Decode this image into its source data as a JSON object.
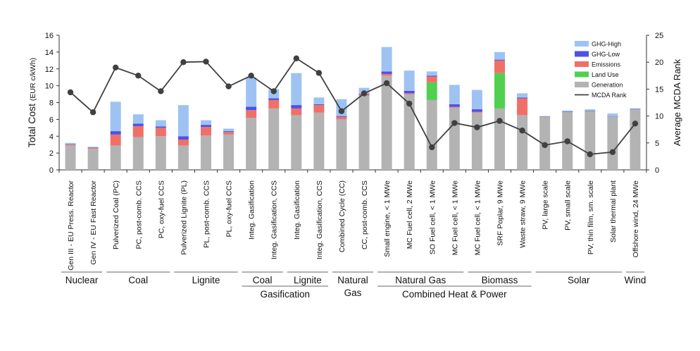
{
  "chart_data": {
    "type": "bar",
    "stacked": true,
    "secondary_line": true,
    "ylabel_left": "Total Cost (EUR c/kWh)",
    "ylabel_left_main": "Total Cost",
    "ylabel_left_sub": "(EUR c/kWh)",
    "ylabel_right": "Average MCDA Rank",
    "ylim_left": [
      0,
      16
    ],
    "ylim_right": [
      0,
      25
    ],
    "yticks_left": [
      "0",
      "2",
      "4",
      "6",
      "8",
      "10",
      "12",
      "14",
      "16"
    ],
    "yticks_right": [
      "0",
      "5",
      "10",
      "15",
      "20",
      "25"
    ],
    "categories": [
      "Gen III - EU Press. Reactor",
      "Gen IV - EU Fast Reactor",
      "Pulverized Coal (PC)",
      "PC, post-comb. CCS",
      "PC, oxy-fuel CCS",
      "Pulverized Lignite (PL)",
      "PL, post-comb. CCS",
      "PL, oxy-fuel CCS",
      "Integ. Gasification",
      "Integ. Gasification, CCS",
      "Integ. Gasification",
      "Integ. Gasification, CCS",
      "Combined Cycle (CC)",
      "CC, post-comb. CCS",
      "Small engine, < 1 MWe",
      "MC Fuel  cell, 2 MWe",
      "SO Fuel cell, < 1 MWe",
      "MC Fuel  cell, < 1 MWe",
      "MC Fuel  cell, < 1 MWe",
      "SRF Poplar, 9 MWe",
      "Waste straw, 9 MWe",
      "PV, large scale",
      "PV, small scale",
      "PV, thin film, sm. scale",
      "Solar thermal plant",
      "Offshore wind, 24 MWe"
    ],
    "series": [
      {
        "name": "Generation",
        "color": "#b3b3b3",
        "values": [
          2.9,
          2.5,
          2.9,
          3.9,
          4.0,
          2.9,
          4.1,
          4.2,
          6.2,
          7.3,
          6.5,
          6.8,
          6.0,
          8.8,
          11.2,
          9.0,
          8.3,
          7.4,
          6.8,
          7.3,
          6.5,
          6.3,
          6.9,
          7.0,
          6.3,
          7.2
        ]
      },
      {
        "name": "Land Use",
        "color": "#4fd14f",
        "values": [
          0,
          0,
          0,
          0,
          0,
          0,
          0,
          0,
          0,
          0,
          0,
          0,
          0,
          0,
          0,
          0,
          2.1,
          0,
          0,
          4.2,
          0,
          0,
          0,
          0,
          0,
          0
        ]
      },
      {
        "name": "Emissions",
        "color": "#f07068",
        "values": [
          0.1,
          0.1,
          1.3,
          1.3,
          1.0,
          0.7,
          1.0,
          0.3,
          0.9,
          1.0,
          0.8,
          0.9,
          0.3,
          0.2,
          0.2,
          0.1,
          0.7,
          0.1,
          0.1,
          1.5,
          2.0,
          0,
          0,
          0,
          0,
          0
        ]
      },
      {
        "name": "GHG-Low",
        "color": "#5050e6",
        "values": [
          0.05,
          0.05,
          0.4,
          0.3,
          0.15,
          0.4,
          0.25,
          0.1,
          0.4,
          0.2,
          0.4,
          0.1,
          0.1,
          0.05,
          0.3,
          0.3,
          0.1,
          0.3,
          0.3,
          0.1,
          0.1,
          0.05,
          0.05,
          0.05,
          0.05,
          0.05
        ]
      },
      {
        "name": "GHG-High",
        "color": "#9ec3f2",
        "values": [
          0.15,
          0.1,
          3.5,
          1.1,
          0.75,
          3.7,
          0.55,
          0.3,
          3.5,
          1.1,
          3.8,
          0.8,
          2.0,
          0.7,
          2.9,
          2.4,
          0.5,
          2.3,
          2.3,
          0.9,
          0.5,
          0.05,
          0.1,
          0.15,
          0.35,
          0.05
        ]
      }
    ],
    "line": {
      "name": "MCDA Rank",
      "color": "#404040",
      "values": [
        14.4,
        10.7,
        19.0,
        17.5,
        14.6,
        20.0,
        20.1,
        15.5,
        17.5,
        14.6,
        20.7,
        18.0,
        10.9,
        14.2,
        16.1,
        12.3,
        4.2,
        8.7,
        7.9,
        9.1,
        7.3,
        4.6,
        5.3,
        2.9,
        3.3,
        8.6
      ]
    },
    "legend": {
      "placement": "top-right",
      "items": [
        {
          "label": "GHG-High",
          "color": "#9ec3f2",
          "kind": "box"
        },
        {
          "label": "GHG-Low",
          "color": "#5050e6",
          "kind": "box"
        },
        {
          "label": "Emissions",
          "color": "#f07068",
          "kind": "box"
        },
        {
          "label": "Land Use",
          "color": "#4fd14f",
          "kind": "box"
        },
        {
          "label": "Generation",
          "color": "#b3b3b3",
          "kind": "box"
        },
        {
          "label": "MCDA Rank",
          "color": "#404040",
          "kind": "line"
        }
      ]
    },
    "groups_level1": [
      {
        "label": "Nuclear",
        "lines": [
          "Nuclear"
        ],
        "from": 0,
        "to": 1
      },
      {
        "label": "Coal",
        "lines": [
          "Coal"
        ],
        "from": 2,
        "to": 4
      },
      {
        "label": "Lignite",
        "lines": [
          "Lignite"
        ],
        "from": 5,
        "to": 7
      },
      {
        "label": "Coal",
        "lines": [
          "Coal"
        ],
        "from": 8,
        "to": 9
      },
      {
        "label": "Lignite",
        "lines": [
          "Lignite"
        ],
        "from": 10,
        "to": 11
      },
      {
        "label": "Natural Gas",
        "lines": [
          "Natural",
          "Gas"
        ],
        "from": 12,
        "to": 13
      },
      {
        "label": "Natural Gas",
        "lines": [
          "Natural Gas"
        ],
        "from": 14,
        "to": 17
      },
      {
        "label": "Biomass",
        "lines": [
          "Biomass"
        ],
        "from": 18,
        "to": 20
      },
      {
        "label": "Solar",
        "lines": [
          "Solar"
        ],
        "from": 21,
        "to": 24
      },
      {
        "label": "Wind",
        "lines": [
          "Wind"
        ],
        "from": 25,
        "to": 25
      }
    ],
    "groups_level2": [
      {
        "label": "Gasification",
        "from": 8,
        "to": 11
      },
      {
        "label": "Combined Heat & Power",
        "from": 14,
        "to": 20
      }
    ],
    "grid": false
  }
}
